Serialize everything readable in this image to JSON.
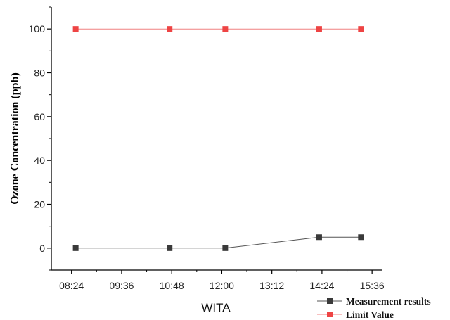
{
  "chart_data": {
    "type": "line",
    "xlabel": "WITA",
    "ylabel": "Ozone Concentration  (ppb)",
    "x_ticks": [
      "08:24",
      "09:36",
      "10:48",
      "12:00",
      "13:12",
      "14:24",
      "15:36"
    ],
    "y_ticks": [
      0,
      20,
      40,
      60,
      80,
      100
    ],
    "xlim": [
      "07:55",
      "15:50"
    ],
    "ylim": [
      -10,
      110
    ],
    "grid": false,
    "legend_position": "bottom-right",
    "series": [
      {
        "name": "Measurement results",
        "color": "#555555",
        "marker_color": "#3a3a3a",
        "marker": "square",
        "points": [
          {
            "x": "08:30",
            "y": 0
          },
          {
            "x": "10:45",
            "y": 0
          },
          {
            "x": "12:05",
            "y": 0
          },
          {
            "x": "14:20",
            "y": 5
          },
          {
            "x": "15:20",
            "y": 5
          }
        ]
      },
      {
        "name": "Limit Value",
        "color": "#f08080",
        "marker_color": "#ee4444",
        "marker": "square",
        "points": [
          {
            "x": "08:30",
            "y": 100
          },
          {
            "x": "10:45",
            "y": 100
          },
          {
            "x": "12:05",
            "y": 100
          },
          {
            "x": "14:20",
            "y": 100
          },
          {
            "x": "15:20",
            "y": 100
          }
        ]
      }
    ]
  }
}
